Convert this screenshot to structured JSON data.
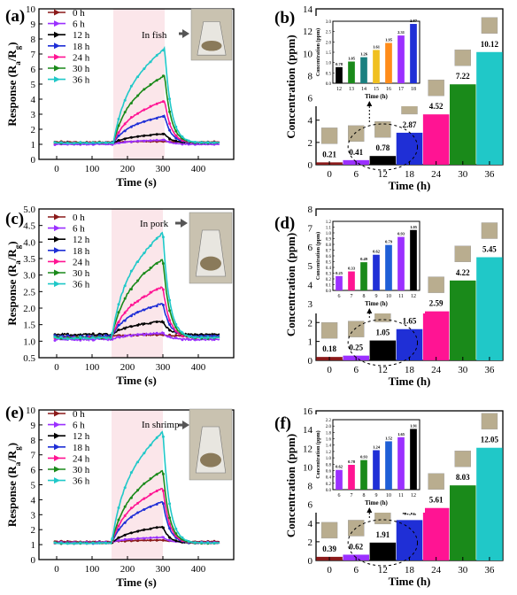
{
  "colors": {
    "0 h": "#8b1a1a",
    "6 h": "#9b30ff",
    "12 h": "#000000",
    "18 h": "#1f2fd6",
    "24 h": "#ff1493",
    "30 h": "#1a8a1a",
    "36 h": "#20c8c8",
    "shade": "#fbe6ea",
    "bar_12": "#000000",
    "bar_13": "#1a8a1a",
    "bar_14": "#1a8080",
    "bar_15": "#f0c020",
    "bar_16": "#ff8c1a",
    "bar_17": "#9b30ff",
    "bar_18": "#1f2fd6"
  },
  "chart_data": [
    {
      "panel": "(a)",
      "type": "line",
      "annotation": "In fish",
      "xlabel": "Time (s)",
      "ylabel": "Response (Ra/Rg)",
      "xlim": [
        -50,
        500
      ],
      "ylim": [
        0,
        10
      ],
      "xticks": [
        0,
        100,
        200,
        300,
        400
      ],
      "yticks": [
        0,
        1,
        2,
        3,
        4,
        5,
        6,
        7,
        8,
        9,
        10
      ],
      "exposure_window": [
        160,
        305
      ],
      "series": [
        {
          "name": "0 h",
          "baseline": 1.15,
          "plateau": 1.2
        },
        {
          "name": "6 h",
          "baseline": 1.0,
          "plateau": 1.3
        },
        {
          "name": "12 h",
          "baseline": 1.1,
          "plateau": 1.7
        },
        {
          "name": "18 h",
          "baseline": 1.1,
          "plateau": 2.9
        },
        {
          "name": "24 h",
          "baseline": 1.1,
          "plateau": 3.9
        },
        {
          "name": "30 h",
          "baseline": 1.1,
          "plateau": 5.6
        },
        {
          "name": "36 h",
          "baseline": 1.1,
          "plateau": 7.4
        }
      ]
    },
    {
      "panel": "(b)",
      "type": "bar",
      "xlabel": "Time (h)",
      "ylabel": "Concentration (ppm)",
      "ylim": [
        0,
        14
      ],
      "yticks": [
        0,
        2,
        4,
        6,
        8,
        10,
        12,
        14
      ],
      "categories": [
        "0",
        "6",
        "12",
        "18",
        "24",
        "30",
        "36"
      ],
      "values": [
        0.21,
        0.41,
        0.78,
        2.87,
        4.52,
        7.22,
        10.12
      ],
      "labels": [
        "0.21",
        "0.41",
        "0.78",
        "2.87",
        "4.52",
        "7.22",
        "10.12"
      ],
      "bar_colors": [
        "#8b1a1a",
        "#9b30ff",
        "#000000",
        "#1f2fd6",
        "#ff1493",
        "#1a8a1a",
        "#20c8c8"
      ],
      "inset": {
        "xlabel": "Time (h)",
        "ylabel": "Concentration (ppm)",
        "categories": [
          "12",
          "13",
          "14",
          "15",
          "16",
          "17",
          "18"
        ],
        "values": [
          0.78,
          1.05,
          1.26,
          1.61,
          1.95,
          2.31,
          2.87
        ],
        "labels": [
          "0.78",
          "1.05",
          "1.26",
          "1.61",
          "1.95",
          "2.31",
          "2.87"
        ],
        "ylim": [
          0,
          3
        ],
        "yticks": [
          0.0,
          0.5,
          1.0,
          1.5,
          2.0,
          2.5,
          3.0
        ],
        "ytick_labels": [
          "0.0",
          "0.5",
          "1.0",
          "1.5",
          "2.0",
          "2.5",
          "3.0"
        ]
      }
    },
    {
      "panel": "(c)",
      "type": "line",
      "annotation": "In pork",
      "xlabel": "Time (s)",
      "ylabel": "Response (Ra/Rg)",
      "xlim": [
        -50,
        500
      ],
      "ylim": [
        0.5,
        5.0
      ],
      "xticks": [
        0,
        100,
        200,
        300,
        400
      ],
      "yticks": [
        0.5,
        1.0,
        1.5,
        2.0,
        2.5,
        3.0,
        3.5,
        4.0,
        4.5,
        5.0
      ],
      "ytick_labels": [
        "0.5",
        "1.0",
        "1.5",
        "2.0",
        "2.5",
        "3.0",
        "3.5",
        "4.0",
        "4.5",
        "5.0"
      ],
      "exposure_window": [
        155,
        300
      ],
      "series": [
        {
          "name": "0 h",
          "baseline": 1.15,
          "plateau": 1.2
        },
        {
          "name": "6 h",
          "baseline": 1.05,
          "plateau": 1.25
        },
        {
          "name": "12 h",
          "baseline": 1.2,
          "plateau": 1.6
        },
        {
          "name": "18 h",
          "baseline": 1.15,
          "plateau": 2.15
        },
        {
          "name": "24 h",
          "baseline": 1.1,
          "plateau": 2.65
        },
        {
          "name": "30 h",
          "baseline": 1.1,
          "plateau": 3.5
        },
        {
          "name": "36 h",
          "baseline": 1.1,
          "plateau": 4.3
        }
      ]
    },
    {
      "panel": "(d)",
      "type": "bar",
      "xlabel": "Time (h)",
      "ylabel": "Concentration (ppm)",
      "ylim": [
        0,
        8
      ],
      "yticks": [
        0,
        1,
        2,
        3,
        4,
        5,
        6,
        7,
        8
      ],
      "categories": [
        "0",
        "6",
        "12",
        "18",
        "24",
        "30",
        "36"
      ],
      "values": [
        0.18,
        0.25,
        1.05,
        1.65,
        2.59,
        4.22,
        5.45
      ],
      "labels": [
        "0.18",
        "0.25",
        "1.05",
        "1.65",
        "2.59",
        "4.22",
        "5.45"
      ],
      "bar_colors": [
        "#8b1a1a",
        "#9b30ff",
        "#000000",
        "#1f2fd6",
        "#ff1493",
        "#1a8a1a",
        "#20c8c8"
      ],
      "inset": {
        "xlabel": "Time (h)",
        "ylabel": "Concentration (ppm)",
        "categories": [
          "6",
          "7",
          "8",
          "9",
          "10",
          "11",
          "12"
        ],
        "values": [
          0.25,
          0.33,
          0.49,
          0.62,
          0.79,
          0.93,
          1.05
        ],
        "labels": [
          "0.25",
          "0.33",
          "0.49",
          "0.62",
          "0.79",
          "0.93",
          "1.05"
        ],
        "ylim": [
          0,
          1.2
        ],
        "yticks": [
          0.0,
          0.1,
          0.2,
          0.3,
          0.4,
          0.5,
          0.6,
          0.7,
          0.8,
          0.9,
          1.0,
          1.1,
          1.2
        ],
        "ytick_labels": [
          "0.0",
          "0.1",
          "0.2",
          "0.3",
          "0.4",
          "0.5",
          "0.6",
          "0.7",
          "0.8",
          "0.9",
          "1.0",
          "1.1",
          "1.2"
        ]
      }
    },
    {
      "panel": "(e)",
      "type": "line",
      "annotation": "In shrimp",
      "xlabel": "Time (s)",
      "ylabel": "Response (Ra/Rg)",
      "xlim": [
        -50,
        500
      ],
      "ylim": [
        0,
        10
      ],
      "xticks": [
        0,
        100,
        200,
        300,
        400
      ],
      "yticks": [
        0,
        1,
        2,
        3,
        4,
        5,
        6,
        7,
        8,
        9,
        10
      ],
      "exposure_window": [
        155,
        300
      ],
      "series": [
        {
          "name": "0 h",
          "baseline": 1.2,
          "plateau": 1.3
        },
        {
          "name": "6 h",
          "baseline": 1.15,
          "plateau": 1.5
        },
        {
          "name": "12 h",
          "baseline": 1.1,
          "plateau": 2.2
        },
        {
          "name": "18 h",
          "baseline": 1.1,
          "plateau": 3.9
        },
        {
          "name": "24 h",
          "baseline": 1.1,
          "plateau": 4.8
        },
        {
          "name": "30 h",
          "baseline": 1.1,
          "plateau": 6.0
        },
        {
          "name": "36 h",
          "baseline": 1.1,
          "plateau": 8.6
        }
      ]
    },
    {
      "panel": "(f)",
      "type": "bar",
      "xlabel": "Time (h)",
      "ylabel": "Concentration (ppm)",
      "ylim": [
        0,
        16
      ],
      "yticks": [
        0,
        2,
        4,
        6,
        8,
        10,
        12,
        14,
        16
      ],
      "categories": [
        "0",
        "6",
        "12",
        "18",
        "24",
        "30",
        "36"
      ],
      "values": [
        0.39,
        0.62,
        1.91,
        4.32,
        5.61,
        8.03,
        12.05
      ],
      "labels": [
        "0.39",
        "0.62",
        "1.91",
        "4.32",
        "5.61",
        "8.03",
        "12.05"
      ],
      "bar_colors": [
        "#8b1a1a",
        "#9b30ff",
        "#000000",
        "#1f2fd6",
        "#ff1493",
        "#1a8a1a",
        "#20c8c8"
      ],
      "inset": {
        "xlabel": "Time (h)",
        "ylabel": "Concentration (ppm)",
        "categories": [
          "6",
          "7",
          "8",
          "9",
          "10",
          "11",
          "12"
        ],
        "values": [
          0.62,
          0.78,
          0.93,
          1.24,
          1.52,
          1.65,
          1.91
        ],
        "labels": [
          "0.62",
          "0.78",
          "0.93",
          "1.24",
          "1.52",
          "1.65",
          "1.91"
        ],
        "ylim": [
          0,
          2.2
        ],
        "yticks": [
          0.0,
          0.2,
          0.4,
          0.6,
          0.8,
          1.0,
          1.2,
          1.4,
          1.6,
          1.8,
          2.0,
          2.2
        ],
        "ytick_labels": [
          "0.0",
          "0.2",
          "0.4",
          "0.6",
          "0.8",
          "1.0",
          "1.2",
          "1.4",
          "1.6",
          "1.8",
          "2.0",
          "2.2"
        ]
      }
    }
  ]
}
